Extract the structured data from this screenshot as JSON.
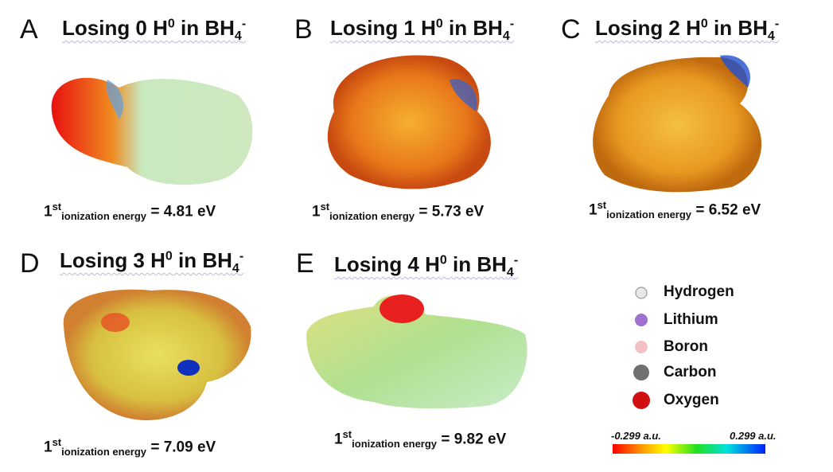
{
  "panels": [
    {
      "letter": "A",
      "title": [
        "Losing 0 H",
        "0",
        " in BH",
        "4",
        "-"
      ],
      "energy": [
        "1",
        "st",
        "ionization energy",
        " = 4.81 eV"
      ]
    },
    {
      "letter": "B",
      "title": [
        "Losing 1 H",
        "0",
        " in BH",
        "4",
        "-"
      ],
      "energy": [
        "1",
        "st",
        "ionization energy",
        " = 5.73 eV"
      ]
    },
    {
      "letter": "C",
      "title": [
        "Losing 2 H",
        "0",
        " in BH",
        "4",
        "-"
      ],
      "energy": [
        "1",
        "st",
        "ionization energy",
        " = 6.52 eV"
      ]
    },
    {
      "letter": "D",
      "title": [
        "Losing 3 H",
        "0",
        " in BH",
        "4",
        "-"
      ],
      "energy": [
        "1",
        "st",
        "ionization energy",
        " = 7.09 eV"
      ]
    },
    {
      "letter": "E",
      "title": [
        "Losing 4 H",
        "0",
        " in BH",
        "4",
        "-"
      ],
      "energy": [
        "1",
        "st",
        "ionization energy",
        " = 9.82 eV"
      ]
    }
  ],
  "legend": [
    "Hydrogen",
    "Lithium",
    "Boron",
    "Carbon",
    "Oxygen"
  ],
  "colorbar": {
    "min_label": "-0.299 a.u.",
    "max_label": "0.299 a.u."
  }
}
